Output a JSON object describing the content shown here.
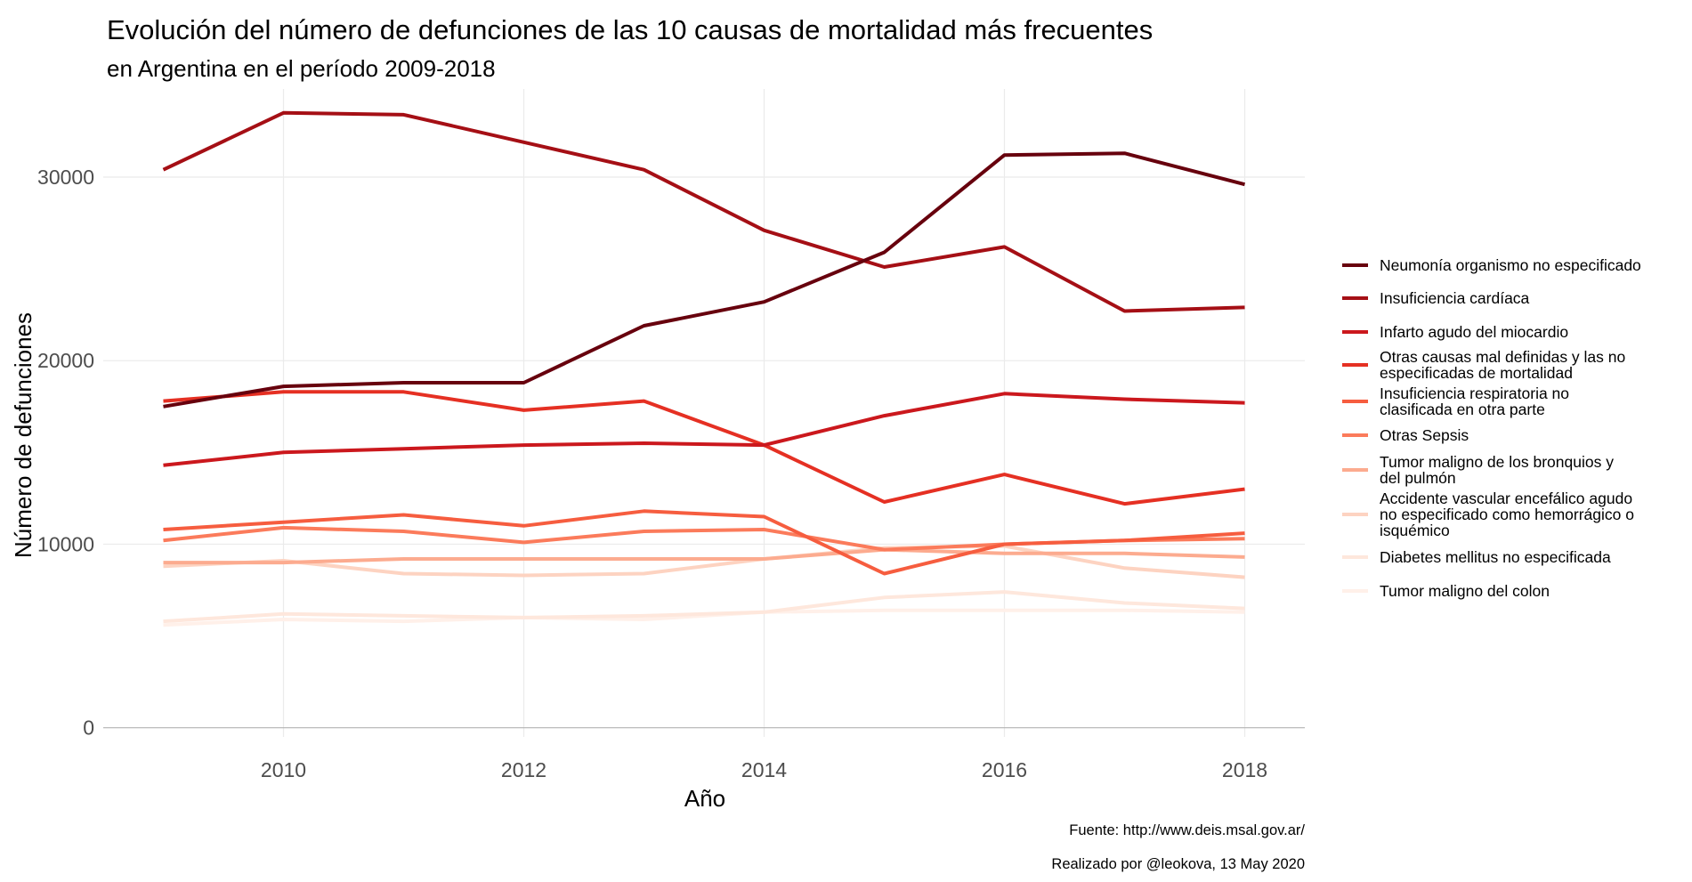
{
  "chart_data": {
    "type": "line",
    "title": "Evolución del número de defunciones de las 10 causas de mortalidad más frecuentes",
    "subtitle": "en Argentina en el período 2009-2018",
    "xlabel": "Año",
    "ylabel": "Número de defunciones",
    "x": [
      2009,
      2010,
      2011,
      2012,
      2013,
      2014,
      2015,
      2016,
      2017,
      2018
    ],
    "xticks": [
      2010,
      2012,
      2014,
      2016,
      2018
    ],
    "yticks": [
      0,
      10000,
      20000,
      30000
    ],
    "xlim": [
      2008.5,
      2018.5
    ],
    "ylim": [
      -500,
      34800
    ],
    "grid": true,
    "legend_position": "right",
    "series": [
      {
        "name": "Neumonía organismo no especificado",
        "color": "#67000d",
        "values": [
          17500,
          18600,
          18800,
          18800,
          21900,
          23200,
          25900,
          31200,
          31300,
          29600
        ]
      },
      {
        "name": "Insuficiencia cardíaca",
        "color": "#a50f15",
        "values": [
          30400,
          33500,
          33400,
          31900,
          30400,
          27100,
          25100,
          26200,
          22700,
          22900
        ]
      },
      {
        "name": "Infarto agudo del miocardio",
        "color": "#cb181d",
        "values": [
          14300,
          15000,
          15200,
          15400,
          15500,
          15400,
          17000,
          18200,
          17900,
          17700
        ]
      },
      {
        "name": "Otras causas mal definidas y las no\nespecificadas de mortalidad",
        "color": "#e53023",
        "values": [
          17800,
          18300,
          18300,
          17300,
          17800,
          15400,
          12300,
          13800,
          12200,
          13000
        ]
      },
      {
        "name": "Insuficiencia respiratoria no\nclasificada en otra parte",
        "color": "#f65d3f",
        "values": [
          10800,
          11200,
          11600,
          11000,
          11800,
          11500,
          8400,
          10000,
          10200,
          10600
        ]
      },
      {
        "name": "Otras Sepsis",
        "color": "#fb7b5b",
        "values": [
          10200,
          10900,
          10700,
          10100,
          10700,
          10800,
          9700,
          10000,
          10200,
          10300
        ]
      },
      {
        "name": "Tumor maligno de los bronquios y\ndel pulmón",
        "color": "#fcab8f",
        "values": [
          9000,
          9000,
          9200,
          9200,
          9200,
          9200,
          9700,
          9500,
          9500,
          9300
        ]
      },
      {
        "name": "Accidente vascular encefálico agudo\nno especificado como hemorrágico o\nisquémico",
        "color": "#fdd3c1",
        "values": [
          8800,
          9100,
          8400,
          8300,
          8400,
          9200,
          9800,
          9900,
          8700,
          8200
        ]
      },
      {
        "name": "Diabetes mellitus no especificada",
        "color": "#fee7dc",
        "values": [
          5800,
          6200,
          6100,
          6000,
          6100,
          6300,
          7100,
          7400,
          6800,
          6500
        ]
      },
      {
        "name": "Tumor maligno del colon",
        "color": "#fff0e9",
        "values": [
          5600,
          5900,
          5800,
          6000,
          5900,
          6300,
          6400,
          6400,
          6400,
          6300
        ]
      }
    ],
    "caption_source": "Fuente: http://www.deis.msal.gov.ar/",
    "caption_author": "Realizado por @leokova, 13 May 2020"
  }
}
